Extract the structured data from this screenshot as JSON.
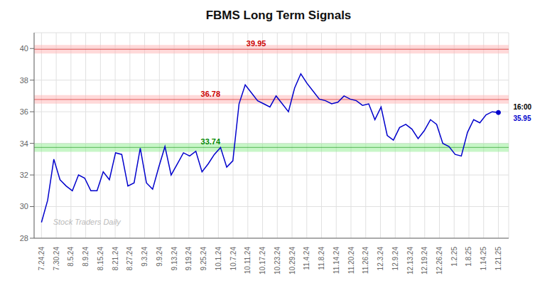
{
  "chart_data": {
    "type": "line",
    "title": "FBMS Long Term Signals",
    "watermark": "Stock Traders Daily",
    "color": "#0000cc",
    "x": [
      0,
      0.419,
      0.838,
      1.257,
      1.676,
      2.095,
      2.514,
      2.932,
      3.351,
      3.77,
      4.189,
      4.608,
      5.027,
      5.446,
      5.865,
      6.284,
      6.703,
      7.122,
      7.541,
      7.959,
      8.378,
      8.797,
      9.216,
      9.635,
      10.054,
      10.473,
      10.892,
      11.311,
      11.73,
      12.149,
      12.568,
      12.986,
      13.405,
      13.824,
      14.243,
      14.662,
      15.081,
      15.5,
      15.919,
      16.338,
      16.757,
      17.176,
      17.595,
      18.014,
      18.432,
      18.851,
      19.27,
      19.689,
      20.108,
      20.527,
      20.946,
      21.365,
      21.784,
      22.203,
      22.622,
      23.041,
      23.459,
      23.878,
      24.297,
      24.716,
      25.135,
      25.554,
      25.973,
      26.392,
      26.811,
      27.23,
      27.649,
      28.068,
      28.486,
      28.905,
      29.324,
      29.743,
      30.162,
      30.581,
      31
    ],
    "values": [
      29.0,
      30.4,
      33.0,
      31.7,
      31.3,
      31.0,
      32.0,
      31.8,
      31.0,
      31.0,
      32.2,
      31.7,
      33.4,
      33.3,
      31.3,
      31.5,
      33.7,
      31.5,
      31.1,
      32.5,
      33.8,
      32.0,
      32.7,
      33.4,
      33.2,
      33.5,
      32.2,
      32.7,
      33.3,
      33.74,
      32.5,
      32.9,
      36.5,
      37.7,
      37.2,
      36.7,
      36.5,
      36.3,
      37.0,
      36.5,
      36.0,
      37.5,
      38.4,
      37.8,
      37.3,
      36.8,
      36.7,
      36.5,
      36.6,
      37.0,
      36.8,
      36.7,
      36.4,
      36.5,
      35.5,
      36.3,
      34.5,
      34.2,
      35.0,
      35.2,
      34.9,
      34.3,
      34.8,
      35.5,
      35.2,
      34.0,
      33.8,
      33.3,
      33.2,
      34.7,
      35.5,
      35.3,
      35.8,
      36.0,
      35.95
    ],
    "xlim": [
      -0.5,
      31.7
    ],
    "xticks": [
      {
        "value": 0,
        "label": "7.24.24"
      },
      {
        "value": 1,
        "label": "7.30.24"
      },
      {
        "value": 2,
        "label": "8.5.24"
      },
      {
        "value": 3,
        "label": "8.9.24"
      },
      {
        "value": 4,
        "label": "8.15.24"
      },
      {
        "value": 5,
        "label": "8.21.24"
      },
      {
        "value": 6,
        "label": "8.27.24"
      },
      {
        "value": 7,
        "label": "9.3.24"
      },
      {
        "value": 8,
        "label": "9.9.24"
      },
      {
        "value": 9,
        "label": "9.13.24"
      },
      {
        "value": 10,
        "label": "9.19.24"
      },
      {
        "value": 11,
        "label": "9.25.24"
      },
      {
        "value": 12,
        "label": "10.1.24"
      },
      {
        "value": 13,
        "label": "10.7.24"
      },
      {
        "value": 14,
        "label": "10.11.24"
      },
      {
        "value": 15,
        "label": "10.17.24"
      },
      {
        "value": 16,
        "label": "10.23.24"
      },
      {
        "value": 17,
        "label": "10.29.24"
      },
      {
        "value": 18,
        "label": "11.4.24"
      },
      {
        "value": 19,
        "label": "11.8.24"
      },
      {
        "value": 20,
        "label": "11.14.24"
      },
      {
        "value": 21,
        "label": "11.20.24"
      },
      {
        "value": 22,
        "label": "11.26.24"
      },
      {
        "value": 23,
        "label": "12.3.24"
      },
      {
        "value": 24,
        "label": "12.9.24"
      },
      {
        "value": 25,
        "label": "12.13.24"
      },
      {
        "value": 26,
        "label": "12.19.24"
      },
      {
        "value": 27,
        "label": "12.26.24"
      },
      {
        "value": 28,
        "label": "1.2.25"
      },
      {
        "value": 29,
        "label": "1.8.25"
      },
      {
        "value": 30,
        "label": "1.14.25"
      },
      {
        "value": 31,
        "label": "1.21.25"
      }
    ],
    "ylim": [
      28,
      41
    ],
    "yticks": [
      28,
      30,
      32,
      34,
      36,
      38,
      40
    ],
    "grid": true,
    "hlines": [
      {
        "y": 39.95,
        "label": "39.95",
        "color": "#ffb3b3",
        "label_color": "#cc0000"
      },
      {
        "y": 36.78,
        "label": "36.78",
        "color": "#ffb3b3",
        "label_color": "#cc0000"
      },
      {
        "y": 33.74,
        "label": "33.74",
        "color": "#90ee90",
        "label_color": "#008800"
      }
    ],
    "end_label": {
      "text": "16:00",
      "value": 35.95
    }
  }
}
